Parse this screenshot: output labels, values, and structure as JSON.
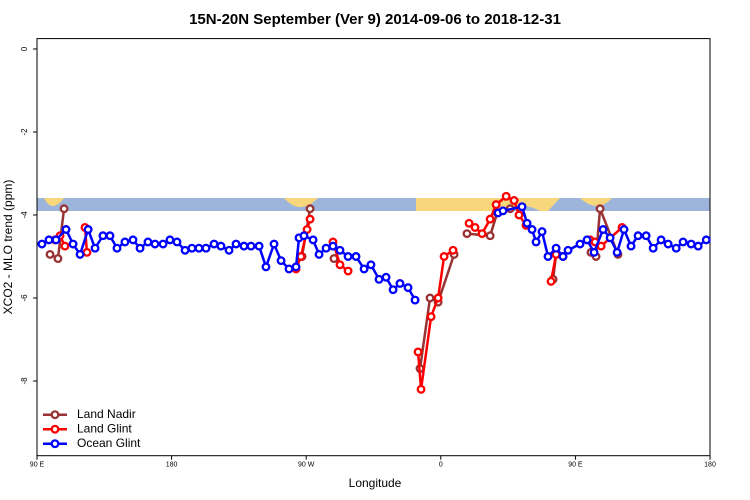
{
  "chart_data": {
    "type": "line",
    "title": "15N-20N September (Ver 9)   2014-09-06 to 2018-12-31",
    "x_label": "Longitude",
    "y_label": "XCO2 - MLO trend (ppm)",
    "xlim": [
      90,
      540
    ],
    "ylim": [
      -9.8,
      0.25
    ],
    "xticks": [
      {
        "value": 90,
        "label": "90 E"
      },
      {
        "value": 180,
        "label": "180"
      },
      {
        "value": 270,
        "label": "90 W"
      },
      {
        "value": 360,
        "label": "0"
      },
      {
        "value": 450,
        "label": "90 E"
      },
      {
        "value": 540,
        "label": "180"
      }
    ],
    "yticks": [
      0,
      -2,
      -4,
      -6,
      -8
    ],
    "legend": "bottom-left",
    "series": [
      {
        "name": "Land Nadir",
        "color": "#993333",
        "x": [
          98.7,
          104,
          108.1,
          null,
          267.2,
          272.6,
          null,
          288.6,
          null,
          346.1,
          352.8,
          358.2,
          368.9,
          null,
          377.5,
          393,
          397.7,
          406.4,
          null,
          435.1,
          437.1,
          null,
          460.4,
          463.8,
          466.5,
          478.5
        ],
        "values": [
          -4.95,
          -5.05,
          -3.85,
          null,
          -5.0,
          -3.85,
          null,
          -5.05,
          null,
          -7.7,
          -6.0,
          -6.1,
          -4.95,
          null,
          -4.45,
          -4.5,
          -3.95,
          -3.85,
          null,
          -5.55,
          -4.95,
          null,
          -4.9,
          -5.0,
          -3.85,
          -4.95
        ]
      },
      {
        "name": "Land Glint",
        "color": "#ff0000",
        "x": [
          102,
          105.4,
          108.7,
          null,
          122.1,
          123.4,
          null,
          263.2,
          266.5,
          270.6,
          272.6,
          null,
          287.9,
          292.6,
          298,
          null,
          344.8,
          346.8,
          353.5,
          358.2,
          362.2,
          368.2,
          null,
          378.9,
          382.9,
          387.6,
          393,
          397,
          403.7,
          409,
          412.3,
          417,
          null,
          433.7,
          437.1,
          441.7,
          null,
          459.8,
          463.1,
          467.2,
          481.2
        ],
        "values": [
          -4.6,
          -4.5,
          -4.75,
          null,
          -4.3,
          -4.9,
          null,
          -5.3,
          -5.0,
          -4.35,
          -4.1,
          null,
          -4.65,
          -5.2,
          -5.35,
          null,
          -7.3,
          -8.2,
          -6.45,
          -6.0,
          -5.0,
          -4.85,
          null,
          -4.2,
          -4.3,
          -4.45,
          -4.1,
          -3.75,
          -3.55,
          -3.65,
          -4.0,
          -4.25,
          null,
          -5.6,
          -4.95,
          -5.0,
          null,
          -4.6,
          -4.65,
          -4.75,
          -4.3
        ]
      },
      {
        "name": "Ocean Glint",
        "color": "#0000ff",
        "x": [
          93.3,
          98,
          102.7,
          109.4,
          114.1,
          118.8,
          124.2,
          128.8,
          134.1,
          138.8,
          143.5,
          148.8,
          154.2,
          158.9,
          164.2,
          168.9,
          174.3,
          178.9,
          183.6,
          189,
          193.6,
          198.3,
          203,
          208.4,
          213,
          218.4,
          223.1,
          228.4,
          233.1,
          238.5,
          243.1,
          248.5,
          253.2,
          258.5,
          263.2,
          265.2,
          268.5,
          274.6,
          278.6,
          283.3,
          287.9,
          292.6,
          298,
          303.3,
          308.7,
          313.3,
          318.7,
          323.4,
          328.1,
          332.7,
          338.1,
          342.8,
          null,
          398.3,
          401.6,
          414.3,
          417.7,
          421,
          423.7,
          427.7,
          431.7,
          437.1,
          441.7,
          445.1,
          453.1,
          457.8,
          462.5,
          468.5,
          473.2,
          477.9,
          482.5,
          487.2,
          491.9,
          497.3,
          502,
          507.3,
          512,
          517.4,
          522,
          527.4,
          532.1,
          537.5
        ],
        "values": [
          -4.7,
          -4.6,
          -4.6,
          -4.35,
          -4.7,
          -4.95,
          -4.35,
          -4.8,
          -4.5,
          -4.5,
          -4.8,
          -4.65,
          -4.6,
          -4.8,
          -4.65,
          -4.7,
          -4.7,
          -4.6,
          -4.65,
          -4.85,
          -4.8,
          -4.8,
          -4.8,
          -4.7,
          -4.75,
          -4.85,
          -4.7,
          -4.75,
          -4.75,
          -4.75,
          -5.25,
          -4.7,
          -5.1,
          -5.3,
          -5.25,
          -4.55,
          -4.5,
          -4.6,
          -4.95,
          -4.8,
          -4.75,
          -4.85,
          -5.0,
          -5.0,
          -5.3,
          -5.2,
          -5.55,
          -5.5,
          -5.8,
          -5.65,
          -5.75,
          -6.05,
          null,
          -3.95,
          -3.9,
          -3.8,
          -4.2,
          -4.35,
          -4.65,
          -4.4,
          -5.0,
          -4.8,
          -5.0,
          -4.85,
          -4.7,
          -4.6,
          -4.9,
          -4.35,
          -4.55,
          -4.9,
          -4.35,
          -4.75,
          -4.5,
          -4.5,
          -4.8,
          -4.6,
          -4.7,
          -4.8,
          -4.65,
          -4.7,
          -4.75,
          -4.6
        ]
      }
    ]
  }
}
